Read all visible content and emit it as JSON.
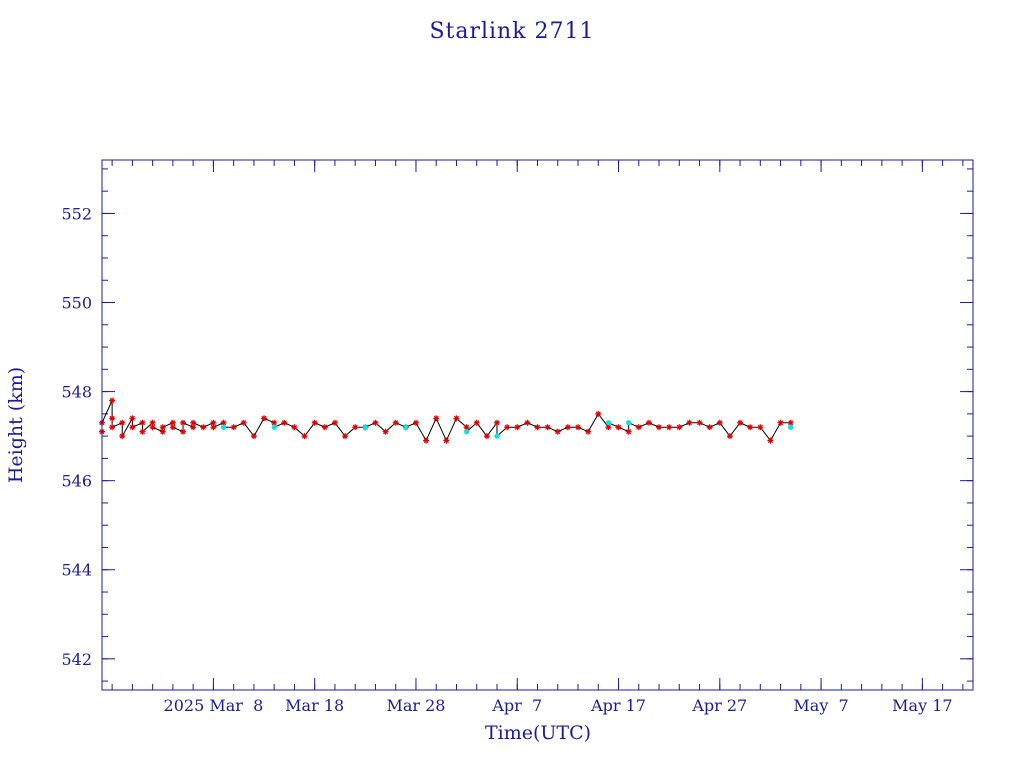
{
  "chart_data": {
    "type": "scatter",
    "title": "Starlink 2711",
    "xlabel": "Time(UTC)",
    "ylabel": "Height (km)",
    "x_tick_labels": [
      "2025 Mar  8",
      "Mar 18",
      "Mar 28",
      "Apr  7",
      "Apr 17",
      "Apr 27",
      "May  7",
      "May 17"
    ],
    "y_tick_labels": [
      "542",
      "544",
      "546",
      "548",
      "550",
      "552"
    ],
    "x_range": [
      "2025-02-25",
      "2025-05-22"
    ],
    "x_major_ticks": [
      "2025-03-08",
      "2025-03-18",
      "2025-03-28",
      "2025-04-07",
      "2025-04-17",
      "2025-04-27",
      "2025-05-07",
      "2025-05-17"
    ],
    "ylim": [
      541.3,
      553.2
    ],
    "y_major_ticks": [
      542,
      544,
      546,
      548,
      550,
      552
    ],
    "y_minor_step": 0.5,
    "colors": {
      "axes": "#1a1aa0",
      "line": "#000000",
      "points": "#e00000",
      "highlight_points": "#00e5e5"
    },
    "series": [
      {
        "marker": "red-asterisk",
        "x": [
          "2025-02-25",
          "2025-02-25",
          "2025-02-26",
          "2025-02-26",
          "2025-02-26",
          "2025-02-27",
          "2025-02-27",
          "2025-02-28",
          "2025-02-28",
          "2025-03-01",
          "2025-03-01",
          "2025-03-02",
          "2025-03-02",
          "2025-03-03",
          "2025-03-03",
          "2025-03-04",
          "2025-03-04",
          "2025-03-05",
          "2025-03-05",
          "2025-03-06",
          "2025-03-06",
          "2025-03-07",
          "2025-03-08",
          "2025-03-08",
          "2025-03-09",
          "2025-03-10",
          "2025-03-11",
          "2025-03-12",
          "2025-03-13",
          "2025-03-14",
          "2025-03-15",
          "2025-03-16",
          "2025-03-17",
          "2025-03-18",
          "2025-03-19",
          "2025-03-20",
          "2025-03-21",
          "2025-03-22",
          "2025-03-23",
          "2025-03-24",
          "2025-03-25",
          "2025-03-26",
          "2025-03-27",
          "2025-03-28",
          "2025-03-29",
          "2025-03-30",
          "2025-03-31",
          "2025-04-01",
          "2025-04-02",
          "2025-04-03",
          "2025-04-04",
          "2025-04-05",
          "2025-04-06",
          "2025-04-07",
          "2025-04-08",
          "2025-04-09",
          "2025-04-10",
          "2025-04-11",
          "2025-04-12",
          "2025-04-13",
          "2025-04-14",
          "2025-04-15",
          "2025-04-16",
          "2025-04-17",
          "2025-04-18",
          "2025-04-19",
          "2025-04-20",
          "2025-04-21",
          "2025-04-22",
          "2025-04-23",
          "2025-04-24",
          "2025-04-25",
          "2025-04-26",
          "2025-04-27",
          "2025-04-28",
          "2025-04-29",
          "2025-04-30",
          "2025-05-01",
          "2025-05-02",
          "2025-05-03",
          "2025-05-04"
        ],
        "y": [
          547.1,
          547.3,
          547.8,
          547.4,
          547.2,
          547.3,
          547.0,
          547.4,
          547.2,
          547.3,
          547.1,
          547.3,
          547.2,
          547.1,
          547.2,
          547.3,
          547.2,
          547.1,
          547.3,
          547.2,
          547.3,
          547.2,
          547.3,
          547.2,
          547.3,
          547.2,
          547.3,
          547.0,
          547.4,
          547.3,
          547.3,
          547.2,
          547.0,
          547.3,
          547.2,
          547.3,
          547.0,
          547.2,
          547.2,
          547.3,
          547.1,
          547.3,
          547.2,
          547.3,
          546.9,
          547.4,
          546.9,
          547.4,
          547.2,
          547.3,
          547.0,
          547.3,
          547.2,
          547.2,
          547.3,
          547.2,
          547.2,
          547.1,
          547.2,
          547.2,
          547.1,
          547.5,
          547.2,
          547.2,
          547.1,
          547.2,
          547.3,
          547.2,
          547.2,
          547.2,
          547.3,
          547.3,
          547.2,
          547.3,
          547.0,
          547.3,
          547.2,
          547.2,
          546.9,
          547.3,
          547.3
        ]
      },
      {
        "marker": "cyan-dot",
        "x": [
          "2025-03-09",
          "2025-03-14",
          "2025-03-23",
          "2025-03-27",
          "2025-04-02",
          "2025-04-05",
          "2025-04-16",
          "2025-04-18",
          "2025-05-04"
        ],
        "y": [
          547.2,
          547.2,
          547.2,
          547.2,
          547.1,
          547.0,
          547.3,
          547.3,
          547.2
        ]
      }
    ]
  }
}
